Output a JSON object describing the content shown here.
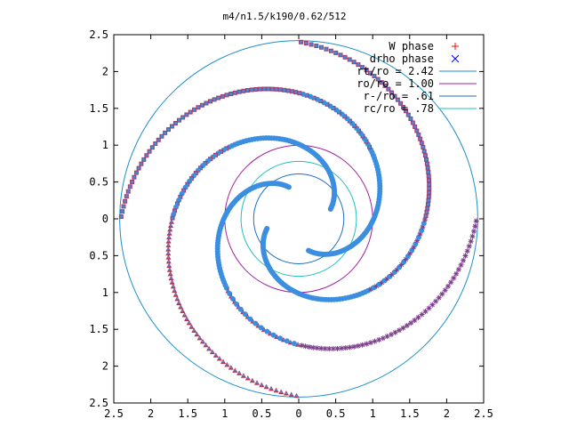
{
  "chart_data": {
    "type": "scatter",
    "title": "m4/n1.5/k190/0.62/512",
    "xlabel": "",
    "ylabel": "",
    "xlim": [
      -2.5,
      2.5
    ],
    "ylim": [
      -2.5,
      2.5
    ],
    "x_ticks": [
      "2.5",
      "2",
      "1.5",
      "1",
      "0.5",
      "0",
      "0.5",
      "1",
      "1.5",
      "2",
      "2.5"
    ],
    "y_ticks": [
      "2.5",
      "2",
      "1.5",
      "1",
      "0.5",
      "0",
      "0.5",
      "1",
      "1.5",
      "2",
      "2.5"
    ],
    "grid": false,
    "legend_position": "top-right",
    "series": [
      {
        "name": "W phase",
        "marker": "+",
        "color": "#ff0000",
        "spiral_arms": 4,
        "r_range": [
          0.45,
          2.4
        ]
      },
      {
        "name": "drho phase",
        "marker": "x",
        "color": "#0000ff",
        "spiral_arms": 4,
        "r_range": [
          0.45,
          2.4
        ]
      }
    ],
    "circles": [
      {
        "name": "rt/ro = 2.42",
        "radius": 2.42,
        "color": "#1c8fc8"
      },
      {
        "name": "ro/ro = 1.00",
        "radius": 1.0,
        "color": "#a020a0"
      },
      {
        "name": "r-/ro = .61",
        "radius": 0.61,
        "color": "#1c6fc8"
      },
      {
        "name": "rc/ro = .78",
        "radius": 0.78,
        "color": "#20c0c0"
      }
    ],
    "colors": {
      "points_main": "#3b8ee0",
      "points_outline": "#a04070",
      "points_star": "#7c3f8c",
      "points_triangle": "#c03050"
    }
  }
}
